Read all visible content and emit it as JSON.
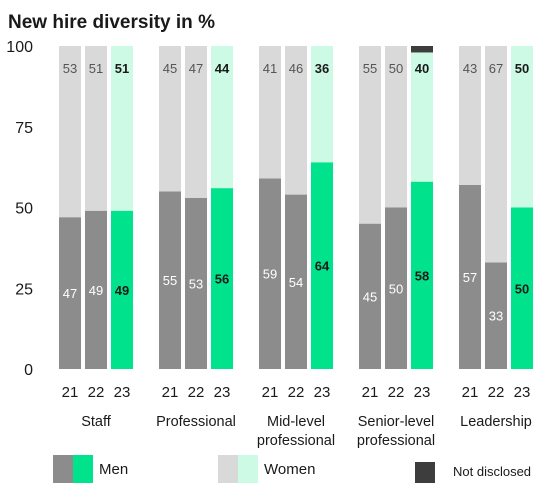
{
  "chart_data": {
    "type": "bar",
    "stacked": true,
    "title": "New hire diversity in %",
    "ylim": [
      0,
      100
    ],
    "yticks": [
      0,
      25,
      50,
      75,
      100
    ],
    "groups": [
      {
        "name": "Staff",
        "years": [
          "21",
          "22",
          "23"
        ],
        "men": [
          47,
          49,
          49
        ],
        "women": [
          53,
          51,
          51
        ],
        "not_disclosed": [
          0,
          0,
          0
        ]
      },
      {
        "name": "Professional",
        "years": [
          "21",
          "22",
          "23"
        ],
        "men": [
          55,
          53,
          56
        ],
        "women": [
          45,
          47,
          44
        ],
        "not_disclosed": [
          0,
          0,
          0
        ]
      },
      {
        "name": "Mid-level professional",
        "years": [
          "21",
          "22",
          "23"
        ],
        "men": [
          59,
          54,
          64
        ],
        "women": [
          41,
          46,
          36
        ],
        "not_disclosed": [
          0,
          0,
          0
        ]
      },
      {
        "name": "Senior-level professional",
        "years": [
          "21",
          "22",
          "23"
        ],
        "men": [
          45,
          50,
          58
        ],
        "women": [
          55,
          50,
          40
        ],
        "not_disclosed": [
          0,
          0,
          2
        ]
      },
      {
        "name": "Leadership",
        "years": [
          "21",
          "22",
          "23"
        ],
        "men": [
          57,
          33,
          50
        ],
        "women": [
          43,
          67,
          50
        ],
        "not_disclosed": [
          0,
          0,
          0
        ]
      }
    ],
    "legend": [
      {
        "name": "Men",
        "colors": [
          "#8c8c8c",
          "#00e38c"
        ]
      },
      {
        "name": "Women",
        "colors": [
          "#d9d9d9",
          "#ccfae5"
        ]
      },
      {
        "name": "Not disclosed",
        "colors": [
          "#3d3d3d"
        ]
      }
    ],
    "colors": {
      "men_prior": "#8c8c8c",
      "men_current": "#00e38c",
      "women_prior": "#d9d9d9",
      "women_current": "#ccfae5",
      "not_disclosed": "#3d3d3d"
    }
  }
}
